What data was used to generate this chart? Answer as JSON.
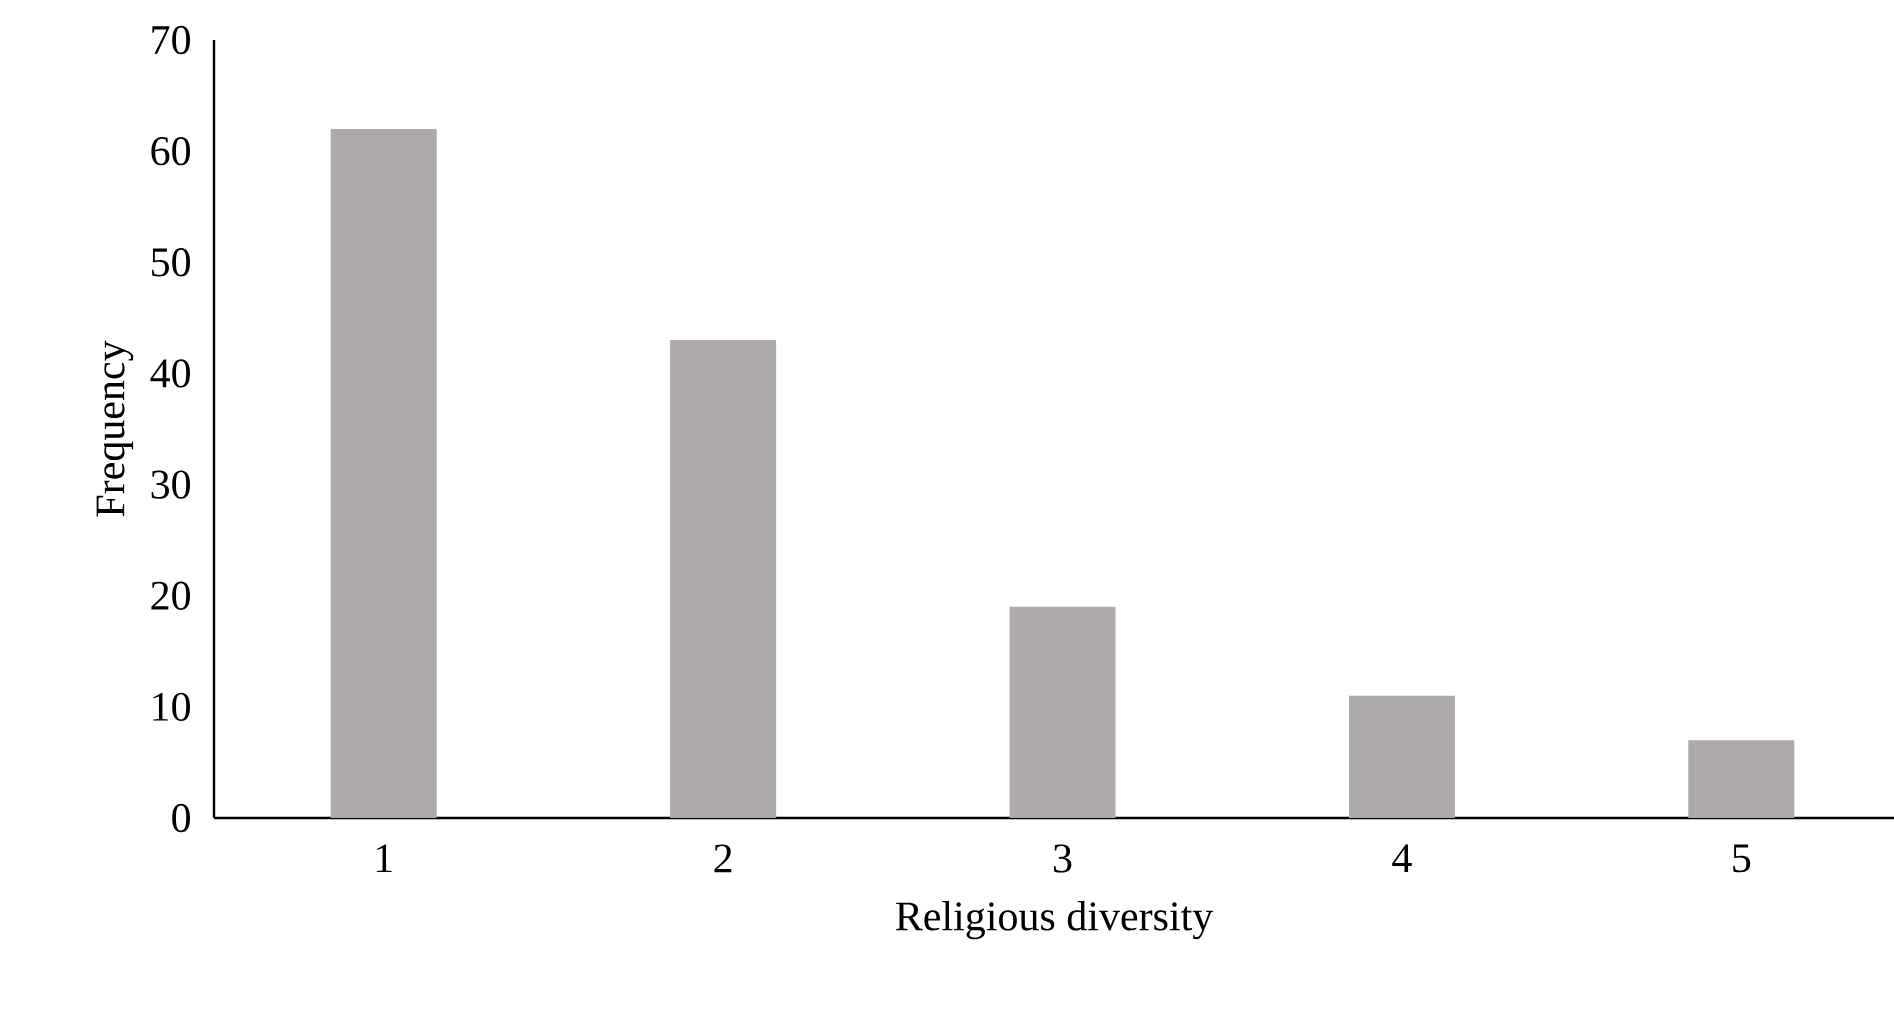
{
  "chart_data": {
    "type": "bar",
    "xlabel": "Religious diversity",
    "ylabel": "Frequency",
    "categories": [
      "1",
      "2",
      "3",
      "4",
      "5"
    ],
    "values": [
      62,
      43,
      19,
      11,
      7
    ],
    "color": "#aeaaa9",
    "ylim": [
      0,
      70
    ],
    "yticks": [
      0,
      10,
      20,
      30,
      40,
      50,
      60,
      70
    ]
  }
}
